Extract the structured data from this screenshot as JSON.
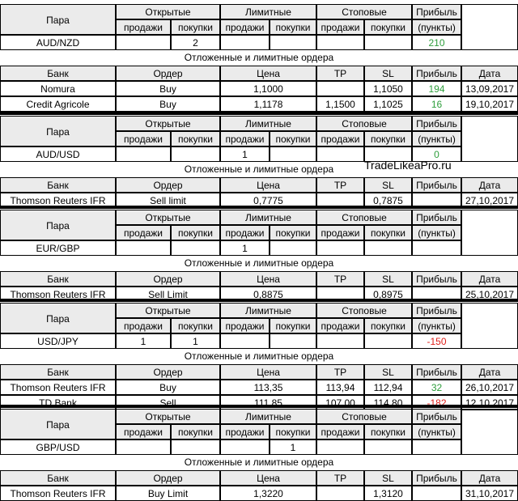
{
  "headers": {
    "pair": "Пара",
    "open": "Открытые",
    "limit": "Лимитные",
    "stop": "Стоповые",
    "profit": "Прибыль",
    "profit_units": "(пункты)",
    "sell": "продажи",
    "buy": "покупки",
    "pending_title": "Отложенные и лимитные ордера",
    "bank": "Банк",
    "order": "Ордер",
    "price": "Цена",
    "tp": "TP",
    "sl": "SL",
    "date": "Дата"
  },
  "watermark": "TradeLikeaPro.ru",
  "colors": {
    "green": "#2e9e3c",
    "red": "#e0201b",
    "header_bg": "#ebebeb"
  },
  "sections": [
    {
      "pair": "AUD/NZD",
      "open_sell": "",
      "open_buy": "2",
      "limit_sell": "",
      "limit_buy": "",
      "stop_sell": "",
      "stop_buy": "",
      "profit": "210",
      "profit_color": "green",
      "orders": [
        {
          "bank": "Nomura",
          "order": "Buy",
          "price": "1,1000",
          "tp": "",
          "sl": "1,1050",
          "profit": "194",
          "profit_color": "green",
          "date": "13,09,2017"
        },
        {
          "bank": "Credit Agricole",
          "order": "Buy",
          "price": "1,1178",
          "tp": "1,1500",
          "sl": "1,1025",
          "profit": "16",
          "profit_color": "green",
          "date": "19,10,2017"
        }
      ]
    },
    {
      "pair": "AUD/USD",
      "open_sell": "",
      "open_buy": "",
      "limit_sell": "1",
      "limit_buy": "",
      "stop_sell": "",
      "stop_buy": "",
      "profit": "0",
      "profit_color": "green",
      "orders": [
        {
          "bank": "Thomson Reuters IFR",
          "order": "Sell limit",
          "price": "0,7775",
          "tp": "",
          "sl": "0,7875",
          "profit": "",
          "profit_color": "",
          "date": "27,10,2017"
        }
      ]
    },
    {
      "pair": "EUR/GBP",
      "open_sell": "",
      "open_buy": "",
      "limit_sell": "1",
      "limit_buy": "",
      "stop_sell": "",
      "stop_buy": "",
      "profit": "",
      "profit_color": "",
      "orders": [
        {
          "bank": "Thomson Reuters IFR",
          "order": "Sell Limit",
          "price": "0,8875",
          "tp": "",
          "sl": "0,8975",
          "profit": "",
          "profit_color": "",
          "date": "25,10,2017"
        }
      ]
    },
    {
      "pair": "USD/JPY",
      "open_sell": "1",
      "open_buy": "1",
      "limit_sell": "",
      "limit_buy": "",
      "stop_sell": "",
      "stop_buy": "",
      "profit": "-150",
      "profit_color": "red",
      "orders": [
        {
          "bank": "Thomson Reuters IFR",
          "order": "Buy",
          "price": "113,35",
          "tp": "113,94",
          "sl": "112,94",
          "profit": "32",
          "profit_color": "green",
          "date": "26,10,2017"
        },
        {
          "bank": "TD Bank",
          "order": "Sell",
          "price": "111,85",
          "tp": "107,00",
          "sl": "114,80",
          "profit": "-182",
          "profit_color": "red",
          "date": "12,10,2017"
        }
      ]
    },
    {
      "pair": "GBP/USD",
      "open_sell": "",
      "open_buy": "",
      "limit_sell": "",
      "limit_buy": "1",
      "stop_sell": "",
      "stop_buy": "",
      "profit": "",
      "profit_color": "",
      "orders": [
        {
          "bank": "Thomson Reuters IFR",
          "order": "Buy Limit",
          "price": "1,3220",
          "tp": "",
          "sl": "1,3120",
          "profit": "",
          "profit_color": "",
          "date": "31,10,2017"
        }
      ]
    }
  ]
}
